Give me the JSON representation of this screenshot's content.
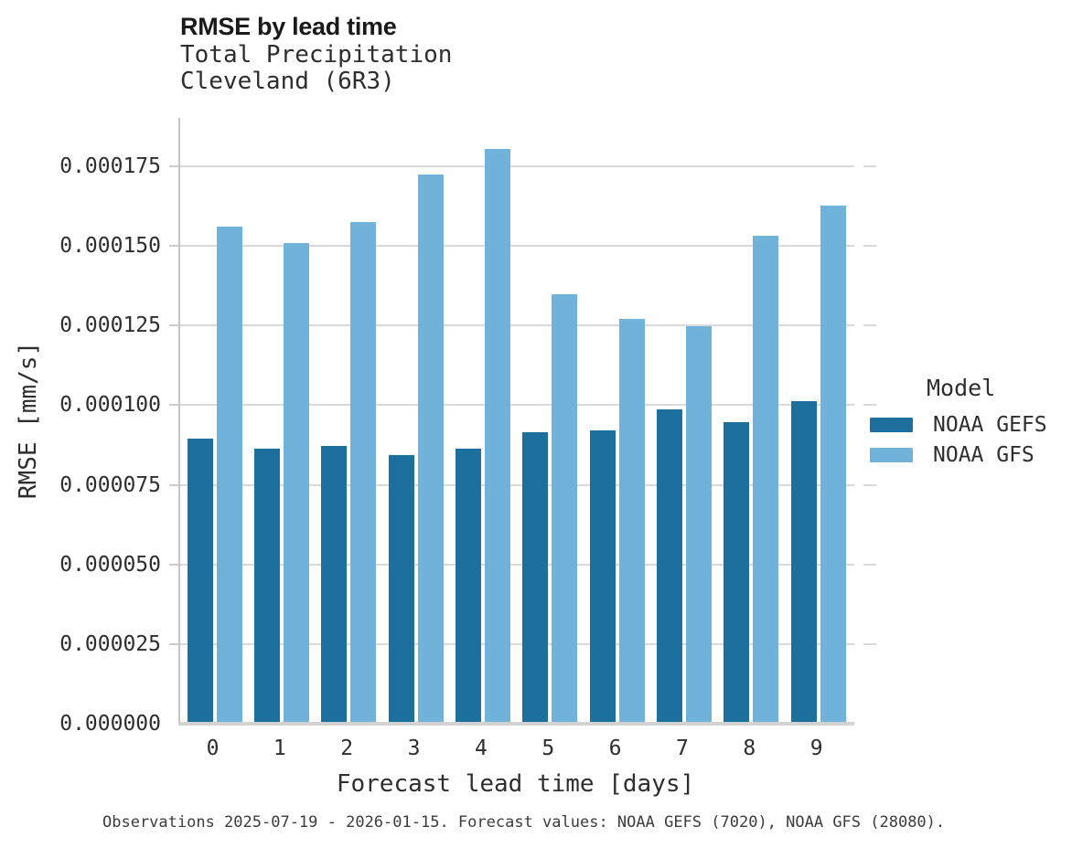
{
  "chart_data": {
    "type": "bar",
    "title": "RMSE by lead time",
    "subtitle": [
      "Total Precipitation",
      "Cleveland (6R3)"
    ],
    "xlabel": "Forecast lead time [days]",
    "ylabel": "RMSE [mm/s]",
    "categories": [
      "0",
      "1",
      "2",
      "3",
      "4",
      "5",
      "6",
      "7",
      "8",
      "9"
    ],
    "series": [
      {
        "name": "NOAA GEFS",
        "color": "#1d6f9e",
        "values": [
          8.95e-05,
          8.65e-05,
          8.72e-05,
          8.43e-05,
          8.65e-05,
          9.15e-05,
          9.22e-05,
          9.87e-05,
          9.48e-05,
          0.0001013
        ]
      },
      {
        "name": "NOAA GFS",
        "color": "#70b2da",
        "values": [
          0.000156,
          0.000151,
          0.0001575,
          0.0001723,
          0.0001805,
          0.0001347,
          0.000127,
          0.0001248,
          0.0001532,
          0.0001627
        ]
      }
    ],
    "ylim": [
      0,
      0.00019
    ],
    "yticks": [
      0,
      2.5e-05,
      5e-05,
      7.5e-05,
      0.0001,
      0.000125,
      0.00015,
      0.000175
    ],
    "ytick_labels": [
      "0.000000",
      "0.000025",
      "0.000050",
      "0.000075",
      "0.000100",
      "0.000125",
      "0.000150",
      "0.000175"
    ],
    "grid": true,
    "legend_position": "right",
    "legend_title": "Model",
    "caption": "Observations 2025-07-19 - 2026-01-15. Forecast values: NOAA GEFS (7020), NOAA GFS (28080)."
  },
  "colors": {
    "grid": "#d9d9d9",
    "spine": "#c6c6c6",
    "baseline": "#d2d2d2",
    "gefs_bar": "#1d6f9e",
    "gfs_bar": "#70b2da",
    "text": "#2e2e2e"
  }
}
